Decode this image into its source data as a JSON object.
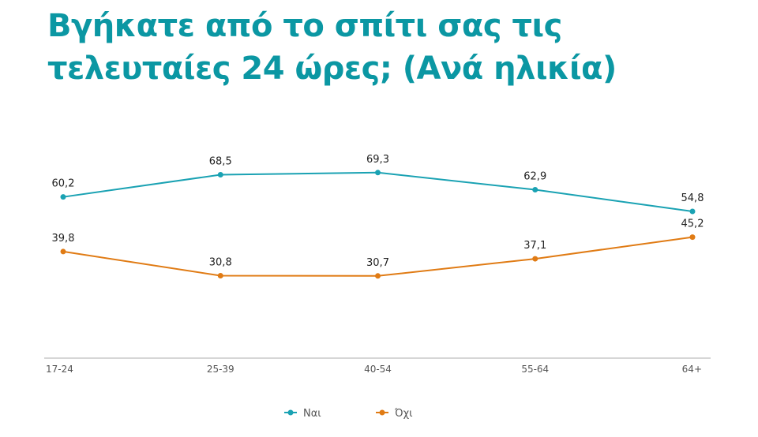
{
  "title": "Βγήκατε από το σπίτι σας τις τελευταίες 24 ώρες; (Ανά ηλικία)",
  "chart_data": {
    "type": "line",
    "title": "Βγήκατε από το σπίτι σας τις τελευταίες 24 ώρες; (Ανά ηλικία)",
    "categories": [
      "17-24",
      "25-39",
      "40-54",
      "55-64",
      "64+"
    ],
    "series": [
      {
        "name": "Ναι",
        "values": [
          60.2,
          68.5,
          69.3,
          62.9,
          54.8
        ],
        "color": "#1aa2b3",
        "labels": [
          "60,2",
          "68,5",
          "69,3",
          "62,9",
          "54,8"
        ]
      },
      {
        "name": "Όχι",
        "values": [
          39.8,
          30.8,
          30.7,
          37.1,
          45.2
        ],
        "color": "#e07b14",
        "labels": [
          "39,8",
          "30,8",
          "30,7",
          "37,1",
          "45,2"
        ]
      }
    ],
    "ylim": [
      0,
      100
    ],
    "grid": false,
    "legend": "bottom",
    "xlabel": "",
    "ylabel": ""
  }
}
